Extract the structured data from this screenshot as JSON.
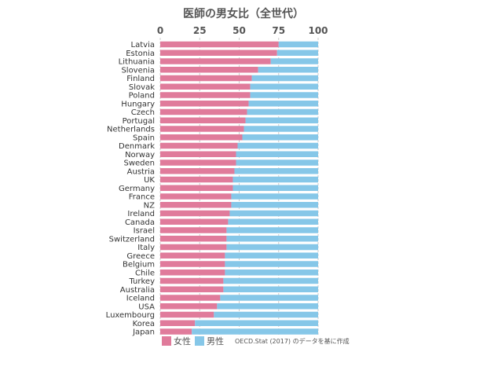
{
  "chart_data": {
    "type": "bar",
    "orientation": "horizontal",
    "stacked": true,
    "title": "医師の男女比（全世代）",
    "categories": [
      "Latvia",
      "Estonia",
      "Lithuania",
      "Slovenia",
      "Finland",
      "Slovak",
      "Poland",
      "Hungary",
      "Czech",
      "Portugal",
      "Netherlands",
      "Spain",
      "Denmark",
      "Norway",
      "Sweden",
      "Austria",
      "UK",
      "Germany",
      "France",
      "NZ",
      "Ireland",
      "Canada",
      "Israel",
      "Switzerland",
      "Italy",
      "Greece",
      "Belgium",
      "Chile",
      "Turkey",
      "Australia",
      "Iceland",
      "USA",
      "Luxembourg",
      "Korea",
      "Japan"
    ],
    "highlight_category": "Japan",
    "series": [
      {
        "name": "女性",
        "color": "#e07b9b",
        "values": [
          75,
          74,
          70,
          62,
          58,
          57,
          57,
          56,
          55,
          54,
          53,
          52,
          49,
          48,
          48,
          47,
          46,
          46,
          45,
          45,
          44,
          43,
          42,
          42,
          42,
          41,
          41,
          41,
          40,
          40,
          38,
          36,
          34,
          22,
          20
        ]
      },
      {
        "name": "男性",
        "color": "#86c7e8",
        "values": [
          25,
          26,
          30,
          38,
          42,
          43,
          43,
          44,
          45,
          46,
          47,
          48,
          51,
          52,
          52,
          53,
          54,
          54,
          55,
          55,
          56,
          57,
          58,
          58,
          58,
          59,
          59,
          59,
          60,
          60,
          62,
          64,
          66,
          78,
          80
        ]
      }
    ],
    "xlim": [
      0,
      100
    ],
    "xticks": [
      0,
      25,
      50,
      75,
      100
    ],
    "xaxis_position": "top",
    "grid": true,
    "legend": {
      "placement": "bottom-left"
    },
    "source": "OECD.Stat (2017) のデータを基に作成",
    "colors": {
      "text": "#555555",
      "highlight": "#e05a7a",
      "grid": "#cccccc"
    }
  }
}
